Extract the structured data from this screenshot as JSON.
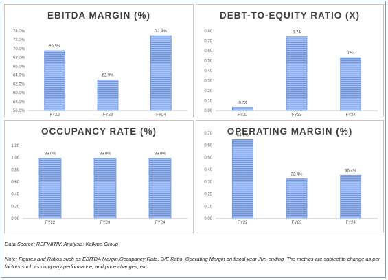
{
  "colors": {
    "bar": "#6f95e2",
    "bar_stripe": "#a9c2ef",
    "axis": "#bfbfbf"
  },
  "footer": {
    "source": "Data Source: REFINITIV, Analysis: Kalkine Group",
    "note": "Note: Figures and Ratios such as EBITDA Margin,Occupancy Rate, D/E Ratio, Operating Margin on fiscal year Jun-ending. The metrics are subject to change as per factors such as company performance, and price changes, etc"
  },
  "chart_data": [
    {
      "type": "bar",
      "title": "EBITDA MARGIN (%)",
      "categories": [
        "FY22",
        "FY23",
        "FY24"
      ],
      "values": [
        69.5,
        62.9,
        72.9
      ],
      "value_labels": [
        "69.5%",
        "62.9%",
        "72.9%"
      ],
      "ylim": [
        56,
        74
      ],
      "yticks": [
        "56.0%",
        "58.0%",
        "60.0%",
        "62.0%",
        "64.0%",
        "66.0%",
        "68.0%",
        "70.0%",
        "72.0%",
        "74.0%"
      ],
      "grid": false
    },
    {
      "type": "bar",
      "title": "DEBT-TO-EQUITY RATIO (X)",
      "categories": [
        "FY22",
        "FY23",
        "FY24"
      ],
      "values": [
        0.03,
        0.74,
        0.53
      ],
      "value_labels": [
        "0.03",
        "0.74",
        "0.53"
      ],
      "ylim": [
        0,
        0.8
      ],
      "yticks": [
        "0.00",
        "0.10",
        "0.20",
        "0.30",
        "0.40",
        "0.50",
        "0.60",
        "0.70",
        "0.80"
      ],
      "grid": false
    },
    {
      "type": "bar",
      "title": "OCCUPANCY RATE (%)",
      "categories": [
        "FY22",
        "FY23",
        "FY24"
      ],
      "values": [
        0.99,
        0.99,
        0.99
      ],
      "value_labels": [
        "99.0%",
        "99.0%",
        "99.0%"
      ],
      "ylim": [
        0,
        1.2
      ],
      "yticks": [
        "0.00",
        "0.20",
        "0.40",
        "0.60",
        "0.80",
        "1.00",
        "1.20"
      ],
      "grid": false
    },
    {
      "type": "bar",
      "title": "OPERATING MARGIN (%)",
      "categories": [
        "FY22",
        "FY23",
        "FY24"
      ],
      "values": [
        0.647,
        0.324,
        0.354
      ],
      "value_labels": [
        "64.7%",
        "32.4%",
        "35.4%"
      ],
      "ylim": [
        0,
        0.7
      ],
      "yticks": [
        "0.00",
        "0.10",
        "0.20",
        "0.30",
        "0.40",
        "0.50",
        "0.60",
        "0.70"
      ],
      "grid": false
    }
  ]
}
